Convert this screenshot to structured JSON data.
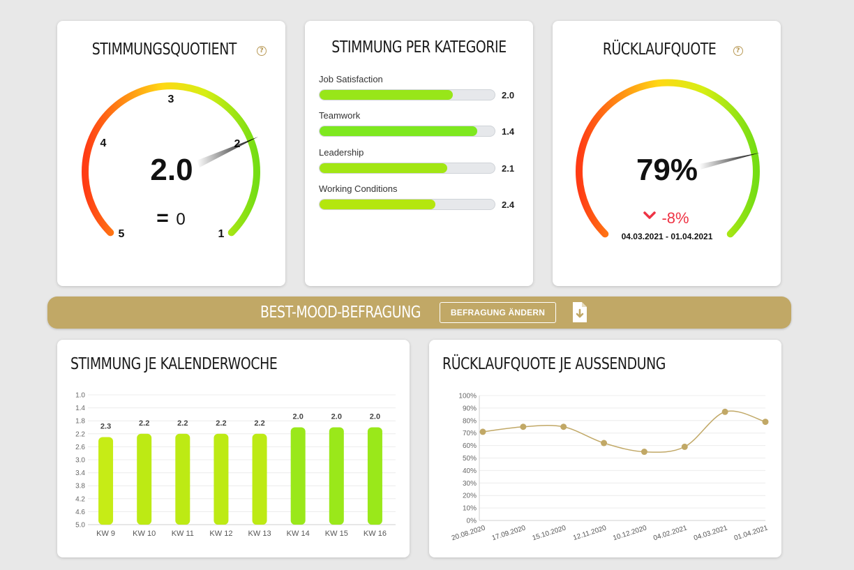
{
  "gauge_mood": {
    "title": "STIMMUNGSQUOTIENT",
    "help_icon": "question-circle-icon",
    "value_label": "2.0",
    "value": 2.0,
    "scale_min": 1,
    "scale_max": 5,
    "scale_labels": [
      "5",
      "4",
      "3",
      "2",
      "1"
    ],
    "trend_symbol": "=",
    "trend_value": "0"
  },
  "categories": {
    "title": "STIMMUNG PER KATEGORIE",
    "items": [
      {
        "label": "Job Satisfaction",
        "value_label": "2.0",
        "fill_fraction": 0.76,
        "color": "#98e619"
      },
      {
        "label": "Teamwork",
        "value_label": "1.4",
        "fill_fraction": 0.9,
        "color": "#7ee81f"
      },
      {
        "label": "Leadership",
        "value_label": "2.1",
        "fill_fraction": 0.73,
        "color": "#a2e614"
      },
      {
        "label": "Working Conditions",
        "value_label": "2.4",
        "fill_fraction": 0.66,
        "color": "#b4e60e"
      }
    ]
  },
  "gauge_response": {
    "title": "RÜCKLAUFQUOTE",
    "help_icon": "question-circle-icon",
    "value_label": "79%",
    "value": 79,
    "trend_icon": "chevron-down-icon",
    "trend_value": "-8%",
    "date_range": "04.03.2021 - 01.04.2021"
  },
  "banner": {
    "title": "BEST-MOOD-BEFRAGUNG",
    "button_label": "BEFRAGUNG ÄNDERN",
    "download_icon": "file-download-icon",
    "color": "#c1a866"
  },
  "weekly_chart": {
    "title": "STIMMUNG JE KALENDERWOCHE"
  },
  "response_chart": {
    "title": "RÜCKLAUFQUOTE JE AUSSENDUNG"
  },
  "chart_data": [
    {
      "type": "bar",
      "title": "STIMMUNG JE KALENDERWOCHE",
      "categories": [
        "KW 9",
        "KW 10",
        "KW 11",
        "KW 12",
        "KW 13",
        "KW 14",
        "KW 15",
        "KW 16"
      ],
      "values": [
        2.3,
        2.2,
        2.2,
        2.2,
        2.2,
        2.0,
        2.0,
        2.0
      ],
      "value_labels": [
        "2.3",
        "2.2",
        "2.2",
        "2.2",
        "2.2",
        "2.0",
        "2.0",
        "2.0"
      ],
      "colors": [
        "#c6ec16",
        "#bdea14",
        "#bdea14",
        "#bdea14",
        "#bdea14",
        "#9ae81a",
        "#9ae81a",
        "#9ae81a"
      ],
      "y_axis_inverted": true,
      "ylim": [
        1.0,
        5.0
      ],
      "y_ticks": [
        "1.0",
        "1.4",
        "1.8",
        "2.2",
        "2.6",
        "3.0",
        "3.4",
        "3.8",
        "4.2",
        "4.6",
        "5.0"
      ],
      "grid": true
    },
    {
      "type": "line",
      "title": "RÜCKLAUFQUOTE JE AUSSENDUNG",
      "x": [
        "20.08.2020",
        "17.09.2020",
        "15.10.2020",
        "12.11.2020",
        "10.12.2020",
        "04.02.2021",
        "04.03.2021",
        "01.04.2021"
      ],
      "values": [
        71,
        75,
        75,
        62,
        55,
        59,
        87,
        79
      ],
      "ylim": [
        0,
        100
      ],
      "y_ticks": [
        "0%",
        "10%",
        "20%",
        "30%",
        "40%",
        "50%",
        "60%",
        "70%",
        "80%",
        "90%",
        "100%"
      ],
      "color": "#c1a866",
      "smooth": true,
      "grid": true
    }
  ]
}
